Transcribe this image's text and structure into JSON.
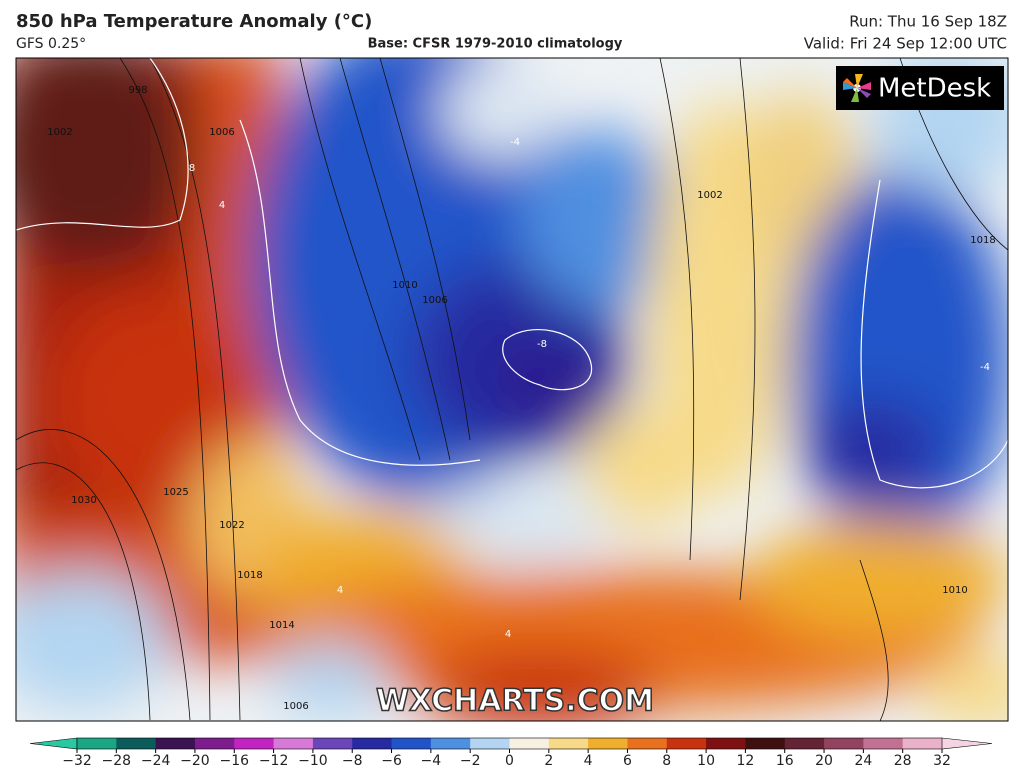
{
  "header": {
    "title": "850 hPa Temperature Anomaly (°C)",
    "model": "GFS 0.25°",
    "base": "Base: CFSR 1979-2010 climatology",
    "run": "Run: Thu 16 Sep 18Z",
    "valid": "Valid: Fri 24 Sep 12:00 UTC"
  },
  "logo": "MetDesk",
  "watermark": "WXCHARTS.COM",
  "map": {
    "contour_labels": [
      "1002",
      "998",
      "1006",
      "8",
      "4",
      "-4",
      "-8",
      "-4",
      "1010",
      "1006",
      "1030",
      "1025",
      "1022",
      "1018",
      "1014",
      "1018",
      "1010",
      "1002",
      "4",
      "4",
      "1006"
    ]
  },
  "colorbar": {
    "ticks": [
      {
        "value": -32,
        "label": "−32"
      },
      {
        "value": -28,
        "label": "−28"
      },
      {
        "value": -24,
        "label": "−24"
      },
      {
        "value": -20,
        "label": "−20"
      },
      {
        "value": -16,
        "label": "−16"
      },
      {
        "value": -12,
        "label": "−12"
      },
      {
        "value": -10,
        "label": "−10"
      },
      {
        "value": -8,
        "label": "−8"
      },
      {
        "value": -6,
        "label": "−6"
      },
      {
        "value": -4,
        "label": "−4"
      },
      {
        "value": -2,
        "label": "−2"
      },
      0,
      2,
      4,
      6,
      8,
      10,
      12,
      16,
      20,
      24,
      28,
      32
    ],
    "colors": [
      "#1aa584",
      "#0d5c5c",
      "#3b1352",
      "#7d1c8c",
      "#c224c2",
      "#d77ad7",
      "#6a46b8",
      "#272aa0",
      "#2154c9",
      "#4f8fe0",
      "#b3d5f1",
      "#f6f1e2",
      "#f7da88",
      "#f0ae2e",
      "#e8701e",
      "#c8320f",
      "#7e1212",
      "#3f1010",
      "#652336",
      "#93425f",
      "#c27192",
      "#e9b2c9"
    ],
    "under_color": "#29c8a0",
    "over_color": "#f4d4e2"
  }
}
